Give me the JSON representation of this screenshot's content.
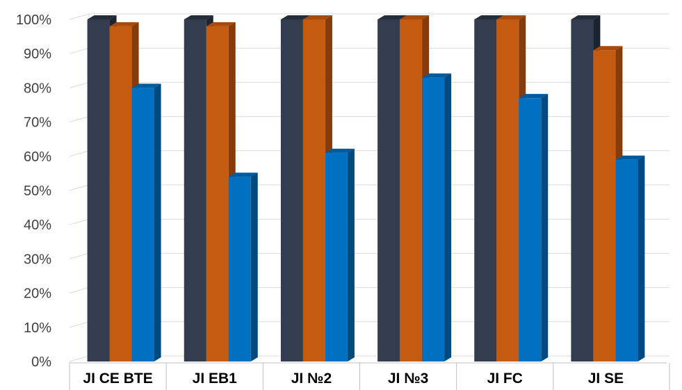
{
  "chart_data": {
    "type": "bar",
    "style": "3d-clustered-column",
    "categories": [
      "JI CE BTE",
      "JI EB1",
      "JI №2",
      "JI №3",
      "JI FC",
      "JI SE"
    ],
    "series": [
      {
        "values": [
          100,
          100,
          100,
          100,
          100,
          100
        ],
        "color": "#333d4f",
        "side_color": "#1d2430",
        "top_color": "#252c3a"
      },
      {
        "values": [
          98,
          98,
          100,
          100,
          100,
          91
        ],
        "color": "#c55a11",
        "side_color": "#843c0c",
        "top_color": "#a64a0e"
      },
      {
        "values": [
          80,
          54,
          61,
          83,
          77,
          59
        ],
        "color": "#0070c0",
        "side_color": "#004a80",
        "top_color": "#005a9e"
      }
    ],
    "ylim": [
      0,
      100
    ],
    "yticks": [
      "0%",
      "10%",
      "20%",
      "30%",
      "40%",
      "50%",
      "60%",
      "70%",
      "80%",
      "90%",
      "100%"
    ],
    "grid": true,
    "legend": "none"
  }
}
